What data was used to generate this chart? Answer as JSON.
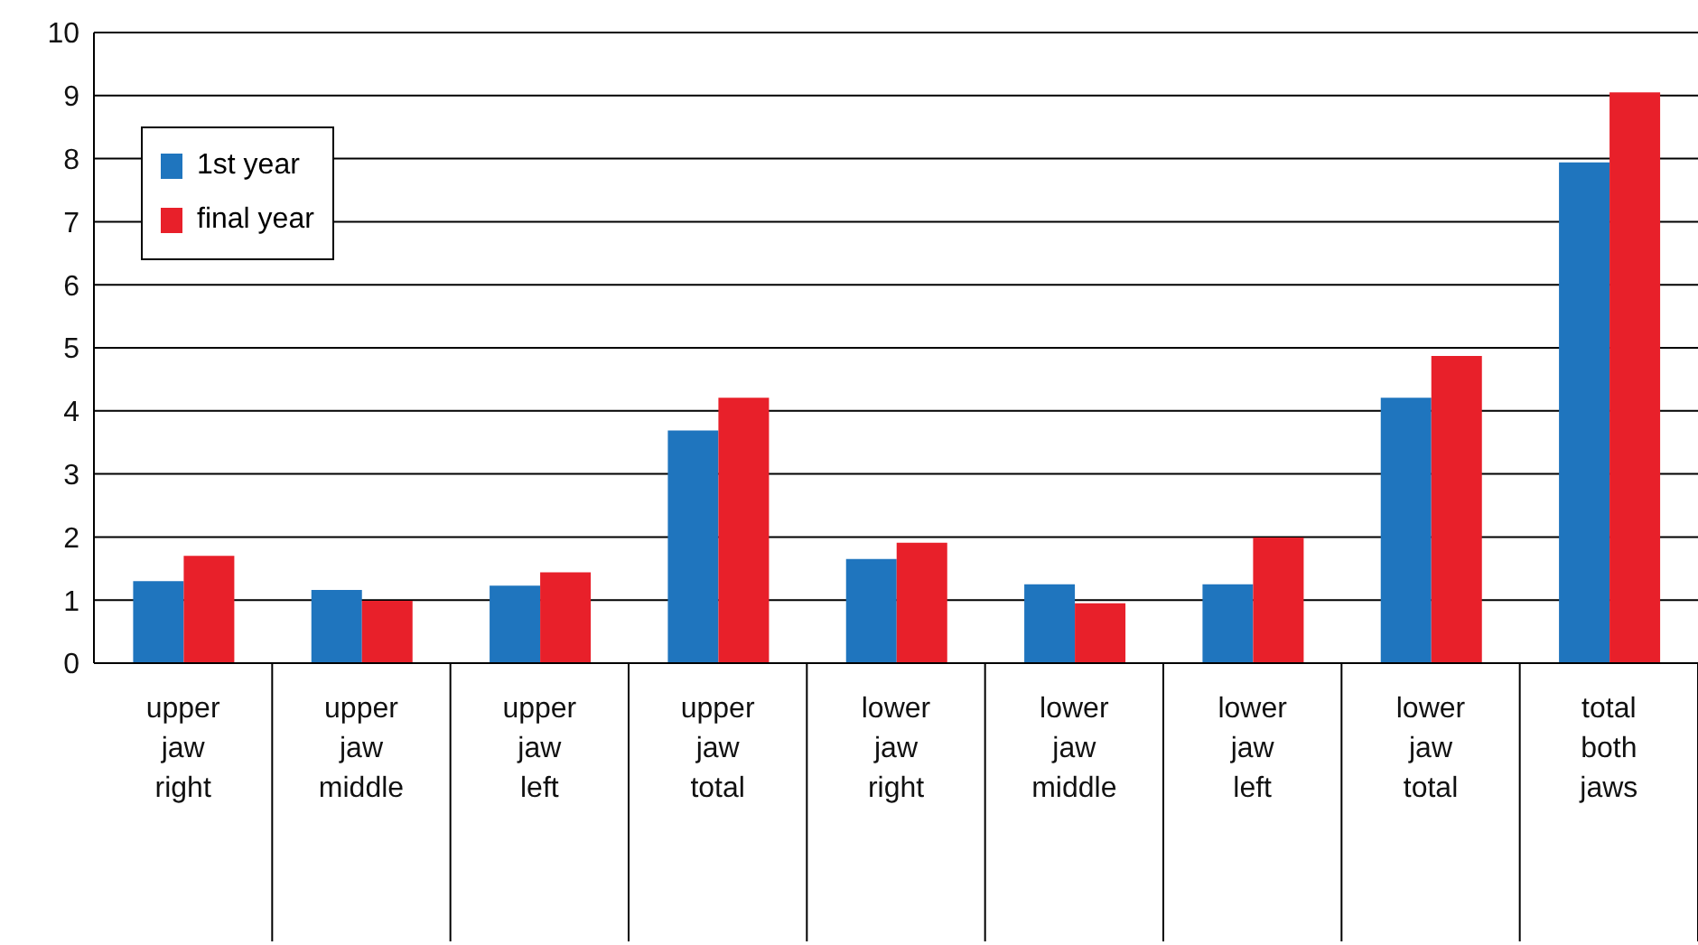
{
  "chart_data": {
    "type": "bar",
    "categories": [
      "upper jaw right",
      "upper jaw middle",
      "upper jaw left",
      "upper jaw total",
      "lower jaw right",
      "lower jaw middle",
      "lower jaw left",
      "lower jaw total",
      "total both jaws"
    ],
    "series": [
      {
        "name": "1st year",
        "color": "#1f75be",
        "values": [
          1.3,
          1.16,
          1.23,
          3.69,
          1.65,
          1.25,
          1.25,
          4.21,
          7.94
        ]
      },
      {
        "name": "final year",
        "color": "#e8202a",
        "values": [
          1.7,
          0.99,
          1.44,
          4.21,
          1.91,
          0.95,
          1.99,
          4.87,
          9.05
        ]
      }
    ],
    "ylim": [
      0,
      10
    ],
    "yticks": [
      0,
      1,
      2,
      3,
      4,
      5,
      6,
      7,
      8,
      9,
      10
    ],
    "grid": "y",
    "legend": "top left"
  }
}
